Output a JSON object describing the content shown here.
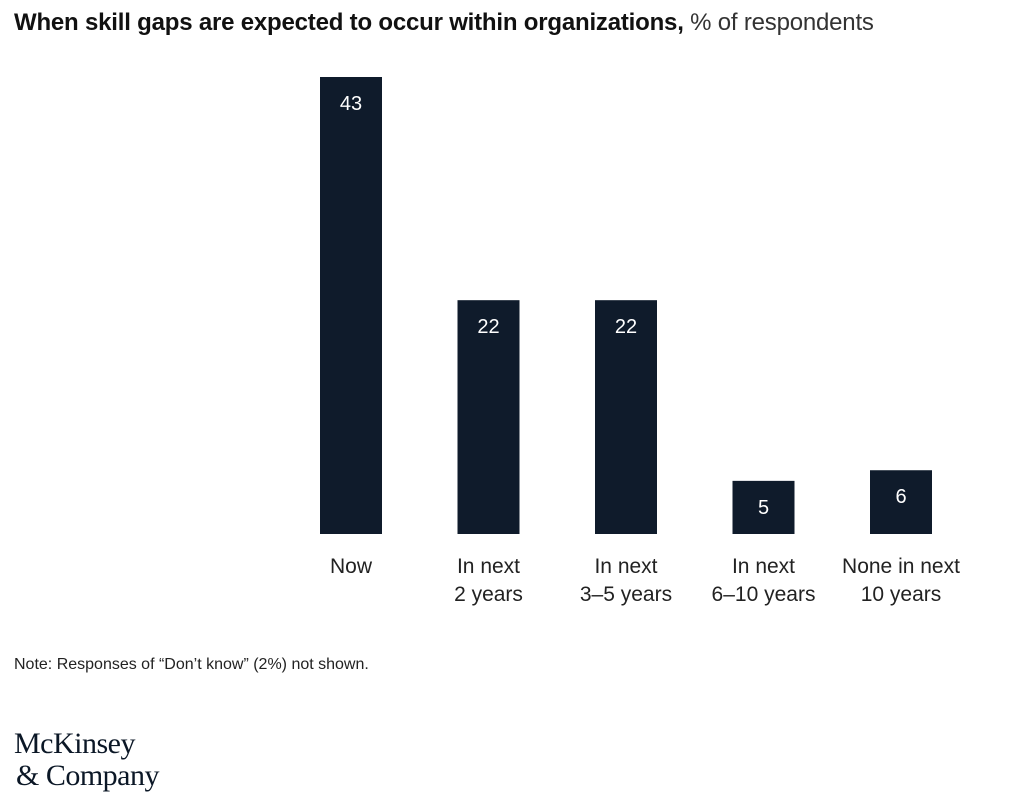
{
  "title": {
    "bold": "When skill gaps are expected to occur within organizations,",
    "light": "% of respondents"
  },
  "chart_data": {
    "type": "bar",
    "title": "When skill gaps are expected to occur within organizations, % of respondents",
    "categories": [
      [
        "Now"
      ],
      [
        "In next",
        "2 years"
      ],
      [
        "In next",
        "3–5 years"
      ],
      [
        "In next",
        "6–10 years"
      ],
      [
        "None in next",
        "10 years"
      ]
    ],
    "values": [
      43,
      22,
      22,
      5,
      6
    ],
    "xlabel": "",
    "ylabel": "% of respondents",
    "ylim": [
      0,
      43
    ],
    "grid": false,
    "legend": "none",
    "bar_color": "#0f1b2b",
    "label_color": "#ffffff"
  },
  "note": "Note: Responses of “Don’t know” (2%) not shown.",
  "logo": {
    "line1": "McKinsey",
    "line2": "& Company"
  }
}
